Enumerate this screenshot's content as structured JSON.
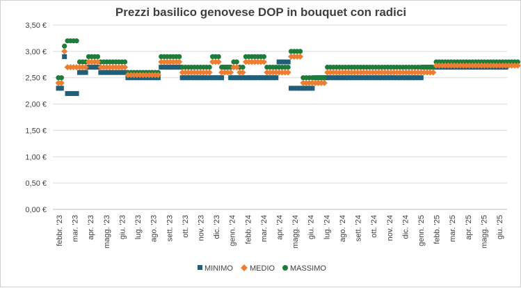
{
  "chart_data": {
    "type": "scatter",
    "title": "Prezzi basilico genovese DOP in bouquet con radici",
    "xlabel": "",
    "ylabel": "",
    "ylim": [
      0,
      3.5
    ],
    "yticks": [
      "0,00 €",
      "0,50 €",
      "1,00 €",
      "1,50 €",
      "2,00 €",
      "2,50 €",
      "3,00 €",
      "3,50 €"
    ],
    "x_tick_labels": [
      "febbr. '23",
      "mar. '23",
      "apr. '23",
      "magg. '23",
      "giu. '23",
      "lug. '23",
      "ago. '23",
      "sett. '23",
      "ott. '23",
      "nov. '23",
      "dic. '23",
      "genn. '24",
      "febb. '24",
      "mar. '24",
      "apr. '24",
      "magg. '24",
      "giu. '24",
      "lug. '24",
      "ago. '24",
      "sett. '24",
      "ott. '24",
      "nov. '24",
      "dic. '24",
      "genn. '25",
      "febb. '25",
      "mar. '25",
      "apr. '25",
      "magg. '25",
      "giu. '25"
    ],
    "grid": true,
    "legend_position": "bottom",
    "series": [
      {
        "name": "MINIMO",
        "color": "#1f5f7a",
        "marker": "square",
        "values": [
          2.3,
          2.3,
          2.9,
          2.2,
          2.2,
          2.2,
          2.2,
          2.6,
          2.6,
          2.6,
          2.7,
          2.7,
          2.7,
          2.7,
          2.6,
          2.6,
          2.6,
          2.6,
          2.6,
          2.6,
          2.6,
          2.6,
          2.6,
          2.5,
          2.5,
          2.5,
          2.5,
          2.5,
          2.5,
          2.5,
          2.5,
          2.5,
          2.5,
          2.5,
          2.7,
          2.7,
          2.7,
          2.7,
          2.7,
          2.7,
          2.7,
          2.5,
          2.5,
          2.5,
          2.5,
          2.5,
          2.5,
          2.5,
          2.5,
          2.5,
          2.5,
          2.5,
          2.5,
          2.5,
          2.5,
          2.7,
          2.7,
          2.5,
          2.5,
          2.5,
          2.5,
          2.5,
          2.5,
          2.5,
          2.5,
          2.5,
          2.5,
          2.5,
          2.5,
          2.5,
          2.5,
          2.5,
          2.5,
          2.8,
          2.8,
          2.8,
          2.8,
          2.3,
          2.3,
          2.3,
          2.3,
          2.3,
          2.3,
          2.3,
          2.3,
          2.5,
          2.5,
          2.5,
          2.5,
          2.5,
          2.5,
          2.5,
          2.5,
          2.5,
          2.5,
          2.5,
          2.5,
          2.5,
          2.5,
          2.5,
          2.5,
          2.5,
          2.5,
          2.5,
          2.5,
          2.5,
          2.5,
          2.5,
          2.5,
          2.5,
          2.5,
          2.5,
          2.5,
          2.5,
          2.5,
          2.5,
          2.5,
          2.5,
          2.5,
          2.5,
          2.5,
          2.7,
          2.7,
          2.7,
          2.7,
          2.7,
          2.7,
          2.7,
          2.7,
          2.7,
          2.7,
          2.7,
          2.7,
          2.7,
          2.7,
          2.7,
          2.7,
          2.7,
          2.7,
          2.7,
          2.7,
          2.7,
          2.7,
          2.7,
          2.7,
          2.7,
          2.7,
          2.7,
          2.7
        ]
      },
      {
        "name": "MEDIO",
        "color": "#ed7d31",
        "marker": "diamond",
        "values": [
          2.4,
          2.4,
          3.0,
          2.7,
          2.7,
          2.7,
          2.7,
          2.7,
          2.7,
          2.7,
          2.8,
          2.8,
          2.8,
          2.8,
          2.7,
          2.7,
          2.7,
          2.7,
          2.7,
          2.7,
          2.7,
          2.7,
          2.7,
          2.55,
          2.55,
          2.55,
          2.55,
          2.55,
          2.55,
          2.55,
          2.55,
          2.55,
          2.55,
          2.55,
          2.8,
          2.8,
          2.8,
          2.8,
          2.8,
          2.8,
          2.8,
          2.6,
          2.6,
          2.6,
          2.6,
          2.6,
          2.6,
          2.6,
          2.6,
          2.6,
          2.6,
          2.8,
          2.8,
          2.8,
          2.6,
          2.6,
          2.6,
          2.6,
          2.7,
          2.7,
          2.6,
          2.6,
          2.8,
          2.8,
          2.8,
          2.8,
          2.8,
          2.8,
          2.8,
          2.6,
          2.6,
          2.6,
          2.6,
          2.6,
          2.6,
          2.6,
          2.6,
          2.9,
          2.9,
          2.9,
          2.9,
          2.4,
          2.4,
          2.4,
          2.4,
          2.4,
          2.4,
          2.4,
          2.4,
          2.6,
          2.6,
          2.6,
          2.6,
          2.6,
          2.6,
          2.6,
          2.6,
          2.6,
          2.6,
          2.6,
          2.6,
          2.6,
          2.6,
          2.6,
          2.6,
          2.6,
          2.6,
          2.6,
          2.6,
          2.6,
          2.6,
          2.6,
          2.6,
          2.6,
          2.6,
          2.6,
          2.6,
          2.6,
          2.6,
          2.6,
          2.6,
          2.6,
          2.6,
          2.6,
          2.6,
          2.73,
          2.73,
          2.73,
          2.73,
          2.73,
          2.73,
          2.73,
          2.73,
          2.73,
          2.73,
          2.73,
          2.73,
          2.73,
          2.73,
          2.73,
          2.73,
          2.73,
          2.73,
          2.73,
          2.73,
          2.73,
          2.73,
          2.73,
          2.73,
          2.73,
          2.73,
          2.73,
          2.73
        ]
      },
      {
        "name": "MASSIMO",
        "color": "#1e7b3a",
        "marker": "circle",
        "values": [
          2.5,
          2.5,
          3.1,
          3.2,
          3.2,
          3.2,
          3.2,
          2.8,
          2.8,
          2.8,
          2.9,
          2.9,
          2.9,
          2.9,
          2.8,
          2.8,
          2.8,
          2.8,
          2.8,
          2.8,
          2.8,
          2.8,
          2.8,
          2.6,
          2.6,
          2.6,
          2.6,
          2.6,
          2.6,
          2.6,
          2.6,
          2.6,
          2.6,
          2.6,
          2.9,
          2.9,
          2.9,
          2.9,
          2.9,
          2.9,
          2.9,
          2.7,
          2.7,
          2.7,
          2.7,
          2.7,
          2.7,
          2.7,
          2.7,
          2.7,
          2.7,
          2.9,
          2.9,
          2.9,
          2.7,
          2.7,
          2.7,
          2.7,
          2.8,
          2.8,
          2.7,
          2.7,
          2.9,
          2.9,
          2.9,
          2.9,
          2.9,
          2.9,
          2.9,
          2.7,
          2.7,
          2.7,
          2.7,
          2.7,
          2.7,
          2.7,
          2.7,
          3.0,
          3.0,
          3.0,
          3.0,
          2.5,
          2.5,
          2.5,
          2.5,
          2.5,
          2.5,
          2.5,
          2.5,
          2.7,
          2.7,
          2.7,
          2.7,
          2.7,
          2.7,
          2.7,
          2.7,
          2.7,
          2.7,
          2.7,
          2.7,
          2.7,
          2.7,
          2.7,
          2.7,
          2.7,
          2.7,
          2.7,
          2.7,
          2.7,
          2.7,
          2.7,
          2.7,
          2.7,
          2.7,
          2.7,
          2.7,
          2.7,
          2.7,
          2.7,
          2.7,
          2.7,
          2.7,
          2.7,
          2.7,
          2.8,
          2.8,
          2.8,
          2.8,
          2.8,
          2.8,
          2.8,
          2.8,
          2.8,
          2.8,
          2.8,
          2.8,
          2.8,
          2.8,
          2.8,
          2.8,
          2.8,
          2.8,
          2.8,
          2.8,
          2.8,
          2.8,
          2.8,
          2.8,
          2.8,
          2.8,
          2.8,
          2.8
        ]
      }
    ]
  }
}
